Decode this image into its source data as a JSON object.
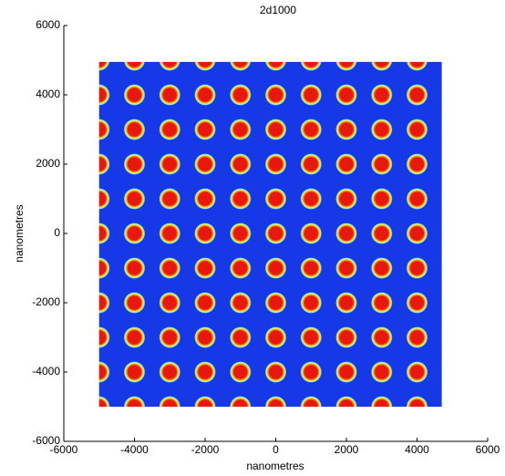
{
  "chart_data": {
    "type": "image",
    "title": "2d1000",
    "x_label": "nanometres",
    "y_label": "nanometres",
    "xlim": [
      -6000,
      6000
    ],
    "ylim": [
      -6000,
      6000
    ],
    "xticks": [
      -6000,
      -4000,
      -2000,
      0,
      2000,
      4000,
      6000
    ],
    "yticks": [
      -6000,
      -4000,
      -2000,
      0,
      2000,
      4000,
      6000
    ],
    "extent": [
      -5000,
      4700,
      -5000,
      4950
    ],
    "period": 1000,
    "background_color": "#1638e6",
    "dot_color": "#e8180e"
  }
}
